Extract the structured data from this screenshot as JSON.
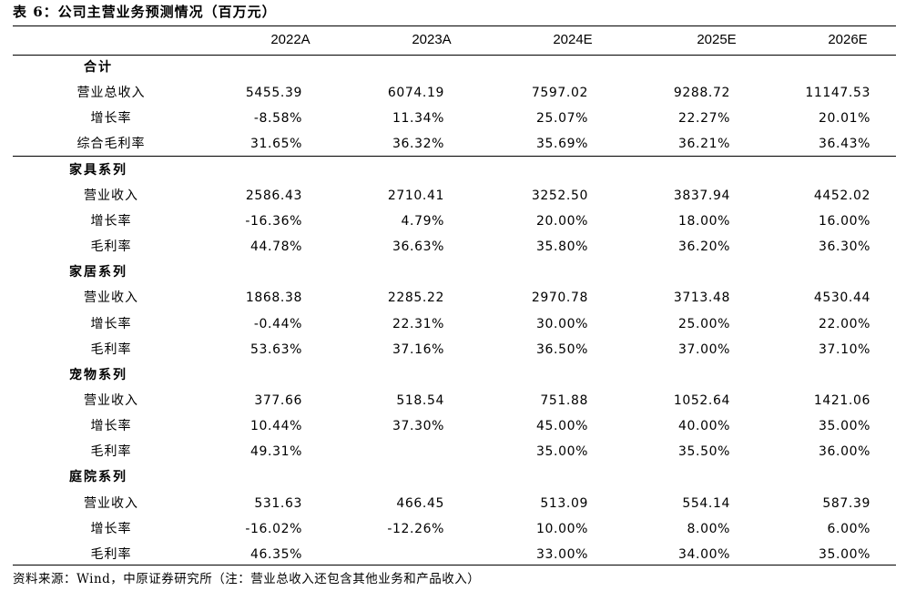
{
  "title": "表 6：公司主营业务预测情况（百万元）",
  "columns": [
    "2022A",
    "2023A",
    "2024E",
    "2025E",
    "2026E"
  ],
  "groups": [
    {
      "name": "合计",
      "rows": [
        {
          "label": "营业总收入",
          "values": [
            "5455.39",
            "6074.19",
            "7597.02",
            "9288.72",
            "11147.53"
          ]
        },
        {
          "label": "增长率",
          "values": [
            "-8.58%",
            "11.34%",
            "25.07%",
            "22.27%",
            "20.01%"
          ]
        },
        {
          "label": "综合毛利率",
          "values": [
            "31.65%",
            "36.32%",
            "35.69%",
            "36.21%",
            "36.43%"
          ]
        }
      ]
    },
    {
      "name": "家具系列",
      "rows": [
        {
          "label": "营业收入",
          "values": [
            "2586.43",
            "2710.41",
            "3252.50",
            "3837.94",
            "4452.02"
          ]
        },
        {
          "label": "增长率",
          "values": [
            "-16.36%",
            "4.79%",
            "20.00%",
            "18.00%",
            "16.00%"
          ]
        },
        {
          "label": "毛利率",
          "values": [
            "44.78%",
            "36.63%",
            "35.80%",
            "36.20%",
            "36.30%"
          ]
        }
      ]
    },
    {
      "name": "家居系列",
      "rows": [
        {
          "label": "营业收入",
          "values": [
            "1868.38",
            "2285.22",
            "2970.78",
            "3713.48",
            "4530.44"
          ]
        },
        {
          "label": "增长率",
          "values": [
            "-0.44%",
            "22.31%",
            "30.00%",
            "25.00%",
            "22.00%"
          ]
        },
        {
          "label": "毛利率",
          "values": [
            "53.63%",
            "37.16%",
            "36.50%",
            "37.00%",
            "37.10%"
          ]
        }
      ]
    },
    {
      "name": "宠物系列",
      "rows": [
        {
          "label": "营业收入",
          "values": [
            "377.66",
            "518.54",
            "751.88",
            "1052.64",
            "1421.06"
          ]
        },
        {
          "label": "增长率",
          "values": [
            "10.44%",
            "37.30%",
            "45.00%",
            "40.00%",
            "35.00%"
          ]
        },
        {
          "label": "毛利率",
          "values": [
            "49.31%",
            "",
            "35.00%",
            "35.50%",
            "36.00%"
          ]
        }
      ]
    },
    {
      "name": "庭院系列",
      "rows": [
        {
          "label": "营业收入",
          "values": [
            "531.63",
            "466.45",
            "513.09",
            "554.14",
            "587.39"
          ]
        },
        {
          "label": "增长率",
          "values": [
            "-16.02%",
            "-12.26%",
            "10.00%",
            "8.00%",
            "6.00%"
          ]
        },
        {
          "label": "毛利率",
          "values": [
            "46.35%",
            "",
            "33.00%",
            "34.00%",
            "35.00%"
          ]
        }
      ]
    }
  ],
  "source": "资料来源：Wind，中原证券研究所（注：营业总收入还包含其他业务和产品收入）"
}
